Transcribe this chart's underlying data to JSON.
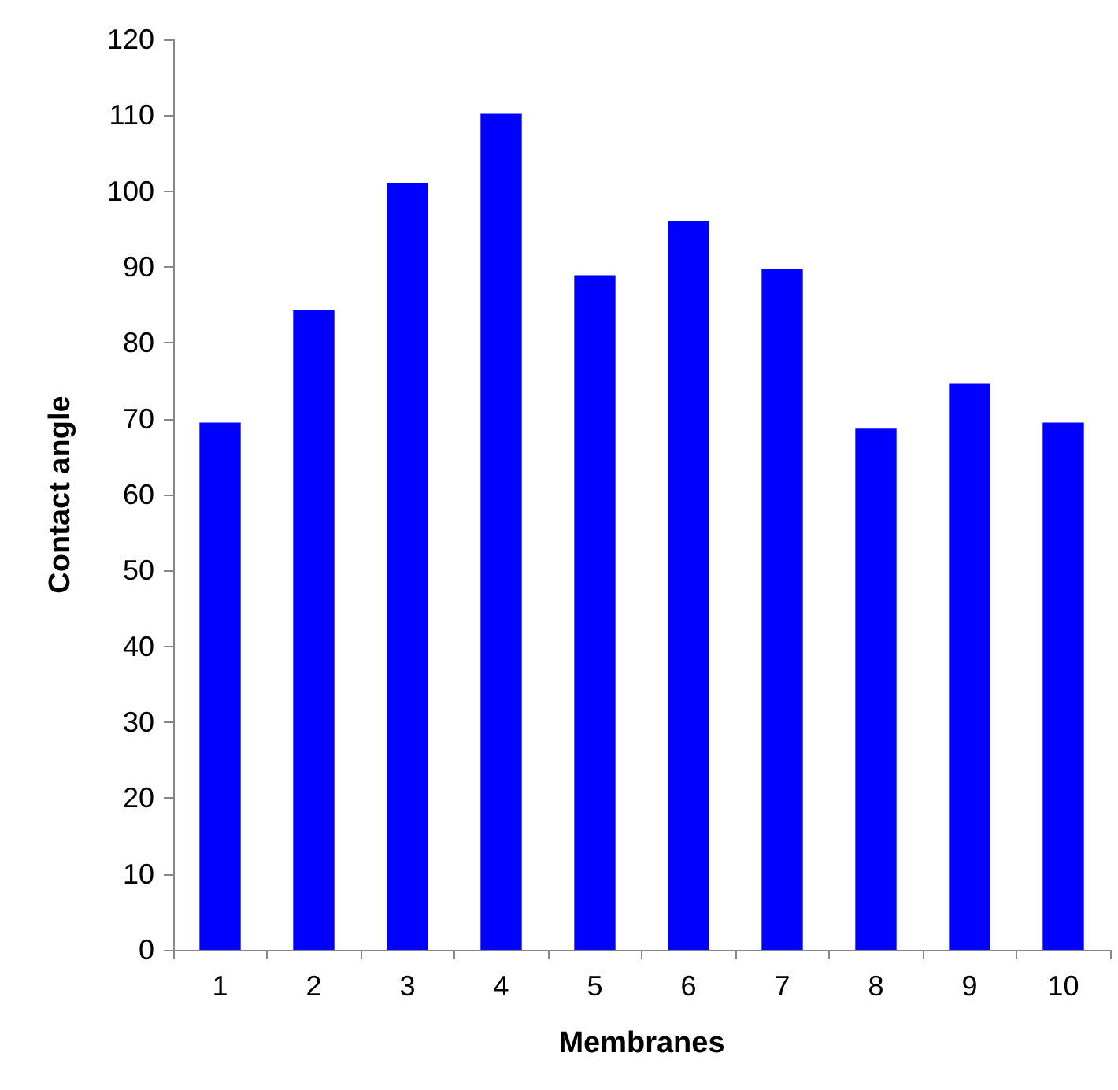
{
  "chart_data": {
    "type": "bar",
    "xlabel": "Membranes",
    "ylabel": "Contact angle",
    "categories": [
      "1",
      "2",
      "3",
      "4",
      "5",
      "6",
      "7",
      "8",
      "9",
      "10"
    ],
    "values": [
      69.5,
      84.3,
      101.1,
      110.2,
      88.9,
      96.1,
      89.7,
      68.7,
      74.7,
      69.5
    ],
    "color": "#0000ff",
    "ylim": [
      0,
      120
    ],
    "yticks": [
      0,
      10,
      20,
      30,
      40,
      50,
      60,
      70,
      80,
      90,
      100,
      110,
      120
    ],
    "grid": false
  }
}
